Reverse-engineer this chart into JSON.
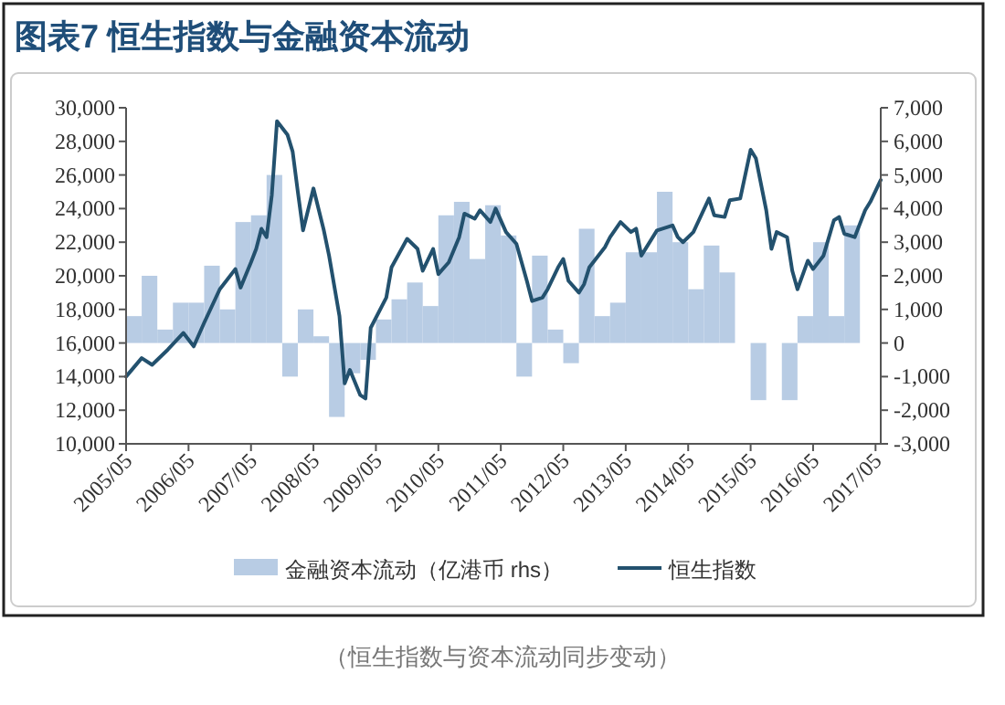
{
  "chart_data": {
    "type": "bar",
    "title": "图表7  恒生指数与金融资本流动",
    "legend": "bottom",
    "grid": false,
    "xlim": [
      "2005-05",
      "2017-06"
    ],
    "xticks": [
      {
        "value": "2005-05",
        "label": "2005/05"
      },
      {
        "value": "2006-05",
        "label": "2006/05"
      },
      {
        "value": "2007-05",
        "label": "2007/05"
      },
      {
        "value": "2008-05",
        "label": "2008/05"
      },
      {
        "value": "2009-05",
        "label": "2009/05"
      },
      {
        "value": "2010-05",
        "label": "2010/05"
      },
      {
        "value": "2011-05",
        "label": "2011/05"
      },
      {
        "value": "2012-05",
        "label": "2012/05"
      },
      {
        "value": "2013-05",
        "label": "2013/05"
      },
      {
        "value": "2014-05",
        "label": "2014/05"
      },
      {
        "value": "2015-05",
        "label": "2015/05"
      },
      {
        "value": "2016-05",
        "label": "2016/05"
      },
      {
        "value": "2017-05",
        "label": "2017/05"
      }
    ],
    "ylim": [
      10000,
      30000
    ],
    "yticks": [
      {
        "value": 10000,
        "label": "10,000"
      },
      {
        "value": 12000,
        "label": "12,000"
      },
      {
        "value": 14000,
        "label": "14,000"
      },
      {
        "value": 16000,
        "label": "16,000"
      },
      {
        "value": 18000,
        "label": "18,000"
      },
      {
        "value": 20000,
        "label": "20,000"
      },
      {
        "value": 22000,
        "label": "22,000"
      },
      {
        "value": 24000,
        "label": "24,000"
      },
      {
        "value": 26000,
        "label": "26,000"
      },
      {
        "value": 28000,
        "label": "28,000"
      },
      {
        "value": 30000,
        "label": "30,000"
      }
    ],
    "y2lim": [
      -3000,
      7000
    ],
    "y2ticks": [
      {
        "value": -3000,
        "label": "-3,000"
      },
      {
        "value": -2000,
        "label": "-2,000"
      },
      {
        "value": -1000,
        "label": "-1,000"
      },
      0,
      {
        "value": 1000,
        "label": "1,000"
      },
      {
        "value": 2000,
        "label": "2,000"
      },
      {
        "value": 3000,
        "label": "3,000"
      },
      {
        "value": 4000,
        "label": "4,000"
      },
      {
        "value": 5000,
        "label": "5,000"
      },
      {
        "value": 6000,
        "label": "6,000"
      },
      {
        "value": 7000,
        "label": "7,000"
      }
    ],
    "series": [
      {
        "name": "金融资本流动（亿港币 rhs）",
        "axis": "y2",
        "color": "#b8cce4",
        "x": [
          "2005-06-16",
          "2005-09-16",
          "2005-12-16",
          "2006-03-16",
          "2006-06-16",
          "2006-09-16",
          "2006-12-16",
          "2007-03-16",
          "2007-06-16",
          "2007-09-16",
          "2007-12-16",
          "2008-03-16",
          "2008-06-16",
          "2008-09-16",
          "2008-12-16",
          "2009-03-16",
          "2009-06-16",
          "2009-09-16",
          "2009-12-16",
          "2010-03-16",
          "2010-06-16",
          "2010-09-16",
          "2010-12-16",
          "2011-03-16",
          "2011-06-16",
          "2011-09-16",
          "2011-12-16",
          "2012-03-16",
          "2012-06-16",
          "2012-09-16",
          "2012-12-16",
          "2013-03-16",
          "2013-06-16",
          "2013-09-16",
          "2013-12-16",
          "2014-03-16",
          "2014-06-16",
          "2014-09-16",
          "2014-12-16",
          "2015-03-16",
          "2015-06-16",
          "2015-09-16",
          "2015-12-16",
          "2016-03-16",
          "2016-06-16",
          "2016-09-16",
          "2016-12-16"
        ],
        "values": [
          800,
          2000,
          400,
          1200,
          1200,
          2300,
          1000,
          3600,
          3800,
          5000,
          -1000,
          1000,
          200,
          -2200,
          -900,
          -500,
          700,
          1300,
          1800,
          1100,
          3800,
          4200,
          2500,
          4100,
          3200,
          -1000,
          2600,
          400,
          -600,
          3400,
          800,
          1200,
          2700,
          2700,
          4500,
          3000,
          1600,
          2900,
          2100,
          0,
          -1700,
          0,
          -1700,
          800,
          3000,
          800,
          3500
        ]
      },
      {
        "name": "恒生指数",
        "type": "line",
        "color": "#23516e",
        "x": [
          "2005-05",
          "2005-08",
          "2005-10",
          "2006-01",
          "2006-04",
          "2006-06",
          "2006-08",
          "2006-11",
          "2007-02",
          "2007-03",
          "2007-05",
          "2007-06",
          "2007-07",
          "2007-08",
          "2007-09",
          "2007-10",
          "2007-12",
          "2008-01",
          "2008-02",
          "2008-03",
          "2008-05",
          "2008-07",
          "2008-08",
          "2008-10",
          "2008-11",
          "2008-12",
          "2009-02",
          "2009-03",
          "2009-04",
          "2009-07",
          "2009-08",
          "2009-11",
          "2010-01",
          "2010-02",
          "2010-04",
          "2010-05",
          "2010-07",
          "2010-09",
          "2010-10",
          "2010-12",
          "2011-01",
          "2011-03",
          "2011-04",
          "2011-06",
          "2011-08",
          "2011-10",
          "2011-11",
          "2012-01",
          "2012-02",
          "2012-04",
          "2012-05",
          "2012-06",
          "2012-08",
          "2012-09",
          "2012-10",
          "2013-01",
          "2013-02",
          "2013-04",
          "2013-06",
          "2013-07",
          "2013-08",
          "2013-11",
          "2014-02",
          "2014-03",
          "2014-04",
          "2014-06",
          "2014-09",
          "2014-10",
          "2014-12",
          "2015-01",
          "2015-03",
          "2015-05",
          "2015-06",
          "2015-08",
          "2015-09",
          "2015-10",
          "2015-12",
          "2016-01",
          "2016-02",
          "2016-04",
          "2016-05",
          "2016-07",
          "2016-09",
          "2016-10",
          "2016-11",
          "2017-01",
          "2017-03",
          "2017-04",
          "2017-06"
        ],
        "values": [
          14000,
          15100,
          14700,
          15600,
          16600,
          15800,
          17200,
          19200,
          20400,
          19300,
          20800,
          21600,
          22800,
          22300,
          24800,
          29200,
          28400,
          27400,
          25000,
          22700,
          25200,
          22700,
          21200,
          17600,
          13600,
          14400,
          12900,
          12700,
          16900,
          18700,
          20500,
          22200,
          21600,
          20300,
          21600,
          20100,
          20800,
          22300,
          23700,
          23400,
          23900,
          23200,
          24000,
          22600,
          21900,
          19700,
          18500,
          18700,
          19200,
          20500,
          21000,
          19700,
          19000,
          19500,
          20500,
          21700,
          22300,
          23200,
          22600,
          22800,
          21200,
          22700,
          23000,
          22300,
          22000,
          22600,
          24600,
          23600,
          23500,
          24500,
          24600,
          27500,
          27000,
          23900,
          21600,
          22600,
          22300,
          20300,
          19200,
          20900,
          20400,
          21200,
          23300,
          23500,
          22500,
          22300,
          23900,
          24400,
          25700
        ]
      }
    ],
    "annotations": [
      "（恒生指数与资本流动同步变动）"
    ]
  }
}
